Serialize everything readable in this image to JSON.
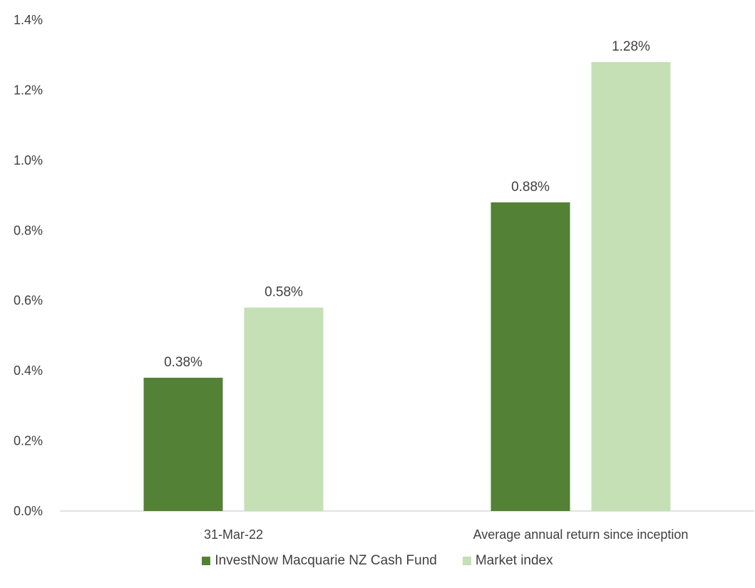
{
  "chart_data": {
    "type": "bar",
    "title": "",
    "xlabel": "",
    "ylabel": "",
    "categories": [
      "31-Mar-22",
      "Average annual return since inception"
    ],
    "series": [
      {
        "name": "InvestNow Macquarie NZ Cash Fund",
        "values": [
          0.38,
          0.88
        ],
        "labels": [
          "0.38%",
          "0.88%"
        ],
        "color": "#538135"
      },
      {
        "name": "Market index",
        "values": [
          0.58,
          1.28
        ],
        "labels": [
          "0.58%",
          "1.28%"
        ],
        "color": "#C5E0B4"
      }
    ],
    "ylim": [
      0,
      1.4
    ],
    "yticks": [
      "0.0%",
      "0.2%",
      "0.4%",
      "0.6%",
      "0.8%",
      "1.0%",
      "1.2%",
      "1.4%"
    ],
    "grid": false,
    "legend_position": "bottom",
    "axis_color": "#D9D9D9"
  }
}
